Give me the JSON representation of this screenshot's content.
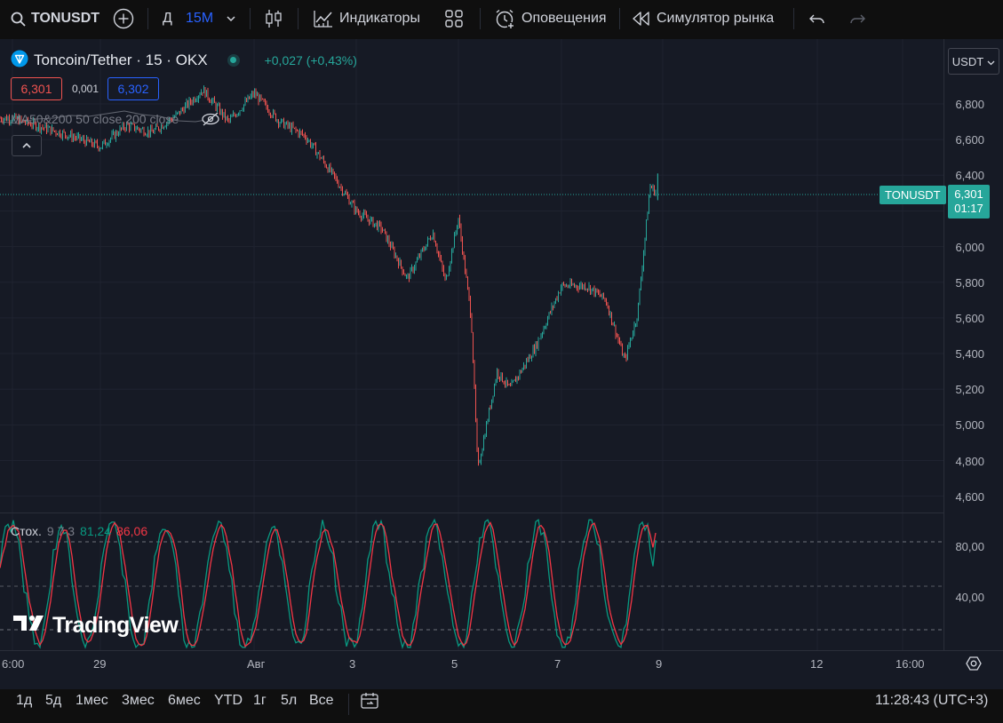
{
  "toolbar": {
    "symbol": "TONUSDT",
    "interval_group": "Д",
    "interval": "15M",
    "indicators_label": "Индикаторы",
    "alerts_label": "Оповещения",
    "replay_label": "Симулятор рынка"
  },
  "legend": {
    "title": "Toncoin/Tether · 15 · OKX",
    "change": "+0,027 (+0,43%)",
    "bid": "6,301",
    "spread": "0,001",
    "ask": "6,302",
    "ma_label": "MA50&200 50 close 200 close"
  },
  "price_axis": {
    "currency": "USDT",
    "labels": [
      "6,800",
      "6,600",
      "6,400",
      "6,200",
      "6,000",
      "5,800",
      "5,600",
      "5,400",
      "5,200",
      "5,000",
      "4,800",
      "4,600"
    ]
  },
  "last_price": {
    "symbol": "TONUSDT",
    "price": "6,301",
    "countdown": "01:17"
  },
  "stochastic": {
    "name": "Стох.",
    "params": "9 7 3",
    "k": "81,24",
    "d": "86,06",
    "axis": [
      "80,00",
      "40,00"
    ]
  },
  "watermark": "TradingView",
  "time_axis": [
    "6:00",
    "29",
    "Авг",
    "3",
    "5",
    "7",
    "9",
    "12",
    "16:00"
  ],
  "bottom": {
    "ranges": [
      "1д",
      "5д",
      "1мес",
      "3мес",
      "6мес",
      "YTD",
      "1г",
      "5л",
      "Все"
    ],
    "clock": "11:28:43 (UTC+3)"
  },
  "colors": {
    "up": "#26a69a",
    "down": "#ef5350",
    "accent": "#2962ff",
    "k_line": "#089981",
    "d_line": "#f23645"
  },
  "chart_data": [
    {
      "type": "candlestick",
      "title": "Toncoin/Tether · 15 · OKX",
      "x_unit": "date",
      "ylim": [
        4.55,
        6.95
      ],
      "close_path": [
        [
          "Jul 28 06:00",
          6.72
        ],
        [
          "Jul 28 18:00",
          6.62
        ],
        [
          "Jul 29 00:00",
          6.56
        ],
        [
          "Jul 29 12:00",
          6.68
        ],
        [
          "Jul 30 00:00",
          6.64
        ],
        [
          "Jul 30 12:00",
          6.74
        ],
        [
          "Jul 31 00:00",
          6.88
        ],
        [
          "Jul 31 12:00",
          6.7
        ],
        [
          "Aug 1 00:00",
          6.86
        ],
        [
          "Aug 1 12:00",
          6.7
        ],
        [
          "Aug 2 00:00",
          6.62
        ],
        [
          "Aug 2 12:00",
          6.42
        ],
        [
          "Aug 3 00:00",
          6.2
        ],
        [
          "Aug 3 12:00",
          6.1
        ],
        [
          "Aug 4 00:00",
          5.82
        ],
        [
          "Aug 4 12:00",
          6.08
        ],
        [
          "Aug 4 18:00",
          5.8
        ],
        [
          "Aug 5 00:00",
          6.16
        ],
        [
          "Aug 5 06:00",
          5.6
        ],
        [
          "Aug 5 09:00",
          4.75
        ],
        [
          "Aug 5 18:00",
          5.3
        ],
        [
          "Aug 6 00:00",
          5.2
        ],
        [
          "Aug 6 12:00",
          5.44
        ],
        [
          "Aug 7 00:00",
          5.78
        ],
        [
          "Aug 7 12:00",
          5.78
        ],
        [
          "Aug 7 21:00",
          5.7
        ],
        [
          "Aug 8 06:00",
          5.36
        ],
        [
          "Aug 8 12:00",
          5.62
        ],
        [
          "Aug 8 18:00",
          6.34
        ],
        [
          "Aug 8 21:00",
          6.3
        ]
      ],
      "last": 6.301
    },
    {
      "type": "line",
      "title": "Стох. 9 7 3",
      "ylim": [
        0,
        100
      ],
      "levels": [
        80,
        50,
        20
      ],
      "series": [
        {
          "name": "%K",
          "last": 81.24
        },
        {
          "name": "%D",
          "last": 86.06
        }
      ]
    }
  ]
}
